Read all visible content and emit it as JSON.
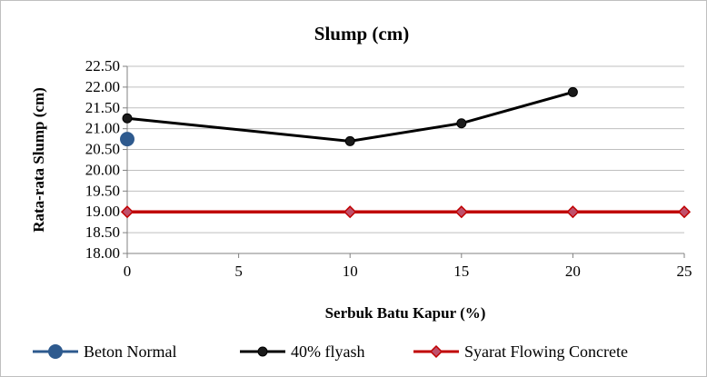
{
  "chart_data": {
    "type": "line",
    "title": "Slump (cm)",
    "xlabel": "Serbuk Batu Kapur (%)",
    "ylabel": "Rata-rata Slump (cm)",
    "xlim": [
      0,
      25
    ],
    "ylim": [
      18.0,
      22.5
    ],
    "x_ticks": [
      0,
      5,
      10,
      15,
      20,
      25
    ],
    "y_ticks": [
      18.0,
      18.5,
      19.0,
      19.5,
      20.0,
      20.5,
      21.0,
      21.5,
      22.0,
      22.5
    ],
    "y_tick_labels": [
      "18.00",
      "18.50",
      "19.00",
      "19.50",
      "20.00",
      "20.50",
      "21.00",
      "21.50",
      "22.00",
      "22.50"
    ],
    "grid": true,
    "legend_position": "bottom",
    "series": [
      {
        "name": "Beton Normal",
        "color": "#2e5a8e",
        "marker": "circle",
        "x": [
          0
        ],
        "y": [
          20.75
        ]
      },
      {
        "name": "40% flyash",
        "color": "#000000",
        "marker": "circle",
        "x": [
          0,
          10,
          15,
          20
        ],
        "y": [
          21.25,
          20.7,
          21.13,
          21.88
        ]
      },
      {
        "name": "Syarat Flowing Concrete",
        "color": "#c00000",
        "marker": "diamond",
        "x": [
          0,
          10,
          15,
          20,
          25
        ],
        "y": [
          19.0,
          19.0,
          19.0,
          19.0,
          19.0
        ]
      }
    ]
  }
}
